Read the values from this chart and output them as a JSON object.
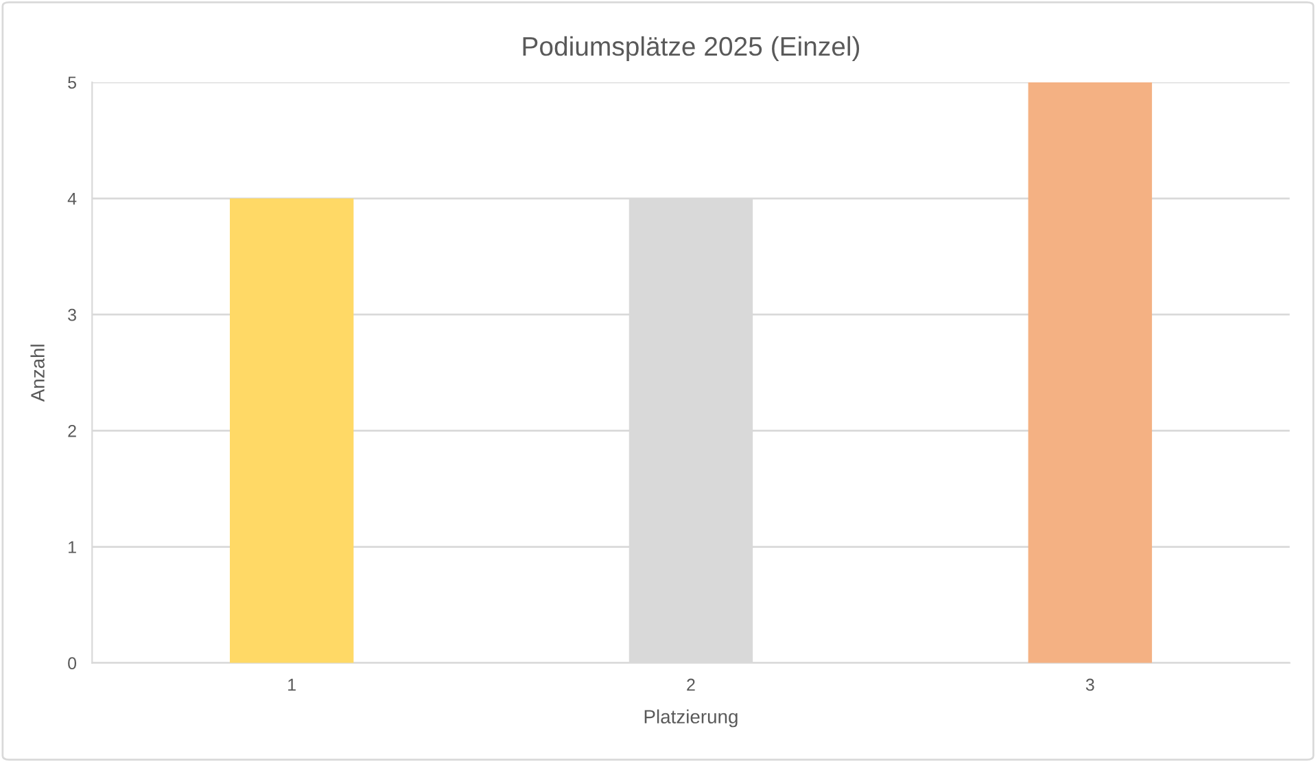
{
  "chart_data": {
    "type": "bar",
    "title": "Podiumsplätze 2025 (Einzel)",
    "xlabel": "Platzierung",
    "ylabel": "Anzahl",
    "categories": [
      "1",
      "2",
      "3"
    ],
    "values": [
      4,
      4,
      5
    ],
    "colors": [
      "#ffd966",
      "#d9d9d9",
      "#f4b183"
    ],
    "ylim": [
      0,
      5
    ],
    "yticks": [
      0,
      1,
      2,
      3,
      4,
      5
    ],
    "grid": "y",
    "legend": false
  }
}
